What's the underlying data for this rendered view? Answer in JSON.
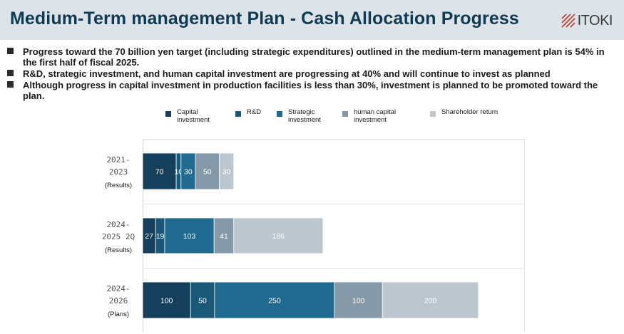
{
  "page": {
    "title": "Medium-Term management Plan - Cash Allocation Progress",
    "logo_text": "ITOKI",
    "bullets": [
      "Progress toward the 70 billion yen target (including strategic expenditures) outlined in the medium-term management plan is 54% in the first half of fiscal 2025.",
      "R&D, strategic investment, and human capital investment are progressing at 40% and will continue to invest as planned",
      "Although progress in capital investment in production facilities is less than 30%, investment is planned to be promoted toward the plan."
    ]
  },
  "colors": {
    "header_bg": "#dde4e9",
    "title": "#0f3a52",
    "logo_mark": "#c0392b"
  },
  "chart_data": {
    "type": "bar",
    "orientation": "horizontal",
    "stacked": true,
    "categories": [
      {
        "lines": [
          "2021-",
          "2023"
        ],
        "sub": "(Results)"
      },
      {
        "lines": [
          "2024-",
          "2025 2Q"
        ],
        "sub": "(Results)"
      },
      {
        "lines": [
          "2024-",
          "2026"
        ],
        "sub": "(Plans)"
      }
    ],
    "series": [
      {
        "name": "Capital investment",
        "color": "#163f5c",
        "values": [
          70,
          27,
          100
        ],
        "labels": [
          "70",
          "27",
          "100"
        ]
      },
      {
        "name": "R&D",
        "color": "#1a5878",
        "values": [
          10,
          19,
          50
        ],
        "labels": [
          "10",
          "19",
          "50"
        ]
      },
      {
        "name": "Strategic investment",
        "color": "#1f6a8e",
        "values": [
          30,
          103,
          250
        ],
        "labels": [
          "30",
          "103",
          "250"
        ]
      },
      {
        "name": "human capital investment",
        "color": "#8599a8",
        "values": [
          50,
          41,
          100
        ],
        "labels": [
          "50",
          "41",
          "100"
        ]
      },
      {
        "name": "Shareholder return",
        "color": "#bcc6ce",
        "values": [
          30,
          186,
          200
        ],
        "labels": [
          "30",
          "186",
          "200"
        ]
      }
    ],
    "xlim": [
      0,
      800
    ],
    "grid": false,
    "legend_position": "top"
  }
}
